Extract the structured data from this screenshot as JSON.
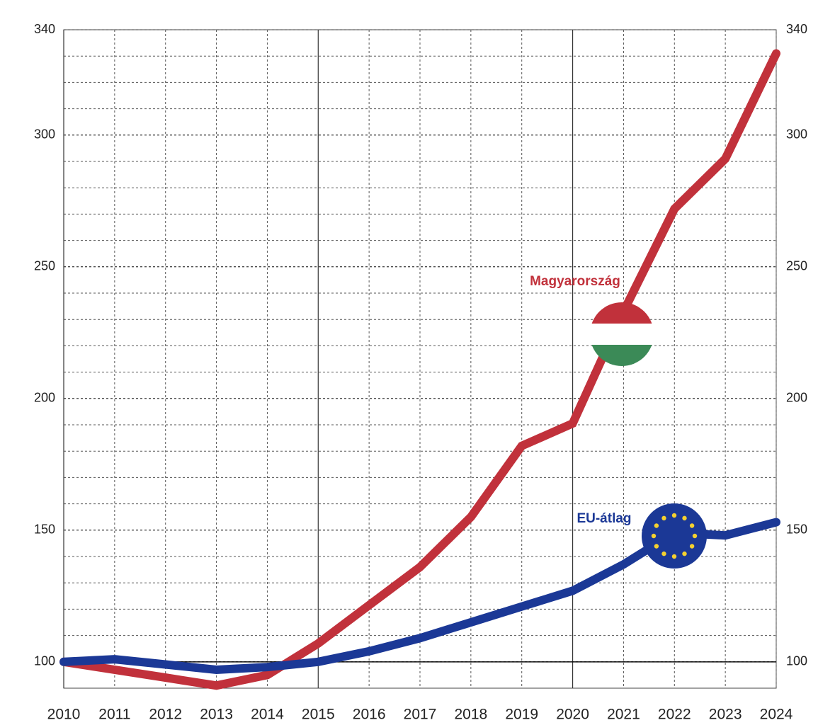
{
  "chart_data": {
    "type": "line",
    "x": [
      2010,
      2011,
      2012,
      2013,
      2014,
      2015,
      2016,
      2017,
      2018,
      2019,
      2020,
      2021,
      2022,
      2023,
      2024
    ],
    "xlim": [
      2010,
      2024
    ],
    "xticks": [
      2010,
      2011,
      2012,
      2013,
      2014,
      2015,
      2016,
      2017,
      2018,
      2019,
      2020,
      2021,
      2022,
      2023,
      2024
    ],
    "ylim": [
      90,
      340
    ],
    "yticks": [
      100,
      150,
      200,
      250,
      300,
      340
    ],
    "yminorticks": [
      100,
      110,
      120,
      130,
      140,
      150,
      160,
      170,
      180,
      190,
      200,
      210,
      220,
      230,
      240,
      250,
      260,
      270,
      280,
      290,
      300,
      310,
      320,
      330
    ],
    "reference_line": 100,
    "grid": true,
    "series": [
      {
        "name": "Magyarország",
        "color": "#c1313b",
        "values": [
          100,
          97,
          94,
          91,
          95,
          107,
          121.5,
          136,
          155,
          182,
          190.5,
          233,
          272,
          291,
          331
        ]
      },
      {
        "name": "EU-átlag",
        "color": "#1b3896",
        "values": [
          100,
          101,
          99,
          97,
          98,
          100,
          104,
          109,
          115,
          121,
          127,
          137,
          149,
          148,
          153
        ]
      }
    ]
  }
}
